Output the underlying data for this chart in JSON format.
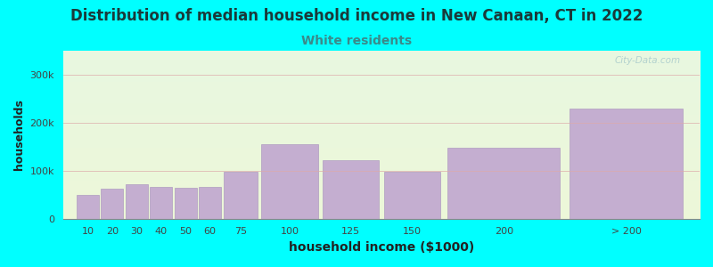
{
  "title": "Distribution of median household income in New Canaan, CT in 2022",
  "subtitle": "White residents",
  "xlabel": "household income ($1000)",
  "ylabel": "households",
  "background_color": "#00FFFF",
  "bar_color": "#c4aed0",
  "bar_edge_color": "#b09cc0",
  "title_color": "#1a3a3a",
  "subtitle_color": "#3a8a8a",
  "categories": [
    "10",
    "20",
    "30",
    "40",
    "50",
    "60",
    "75",
    "100",
    "125",
    "150",
    "200",
    "> 200"
  ],
  "values": [
    50000,
    62000,
    72000,
    66000,
    64000,
    66000,
    97000,
    155000,
    122000,
    97000,
    147000,
    230000
  ],
  "bin_widths": [
    10,
    10,
    10,
    10,
    10,
    10,
    15,
    25,
    25,
    25,
    50,
    50
  ],
  "bin_lefts": [
    5,
    15,
    25,
    35,
    45,
    55,
    65,
    80,
    105,
    130,
    155,
    205
  ],
  "ylim": [
    0,
    350000
  ],
  "yticks": [
    0,
    100000,
    200000,
    300000
  ],
  "ytick_labels": [
    "0",
    "100k",
    "200k",
    "300k"
  ],
  "title_fontsize": 12,
  "subtitle_fontsize": 10,
  "watermark": "City-Data.com"
}
